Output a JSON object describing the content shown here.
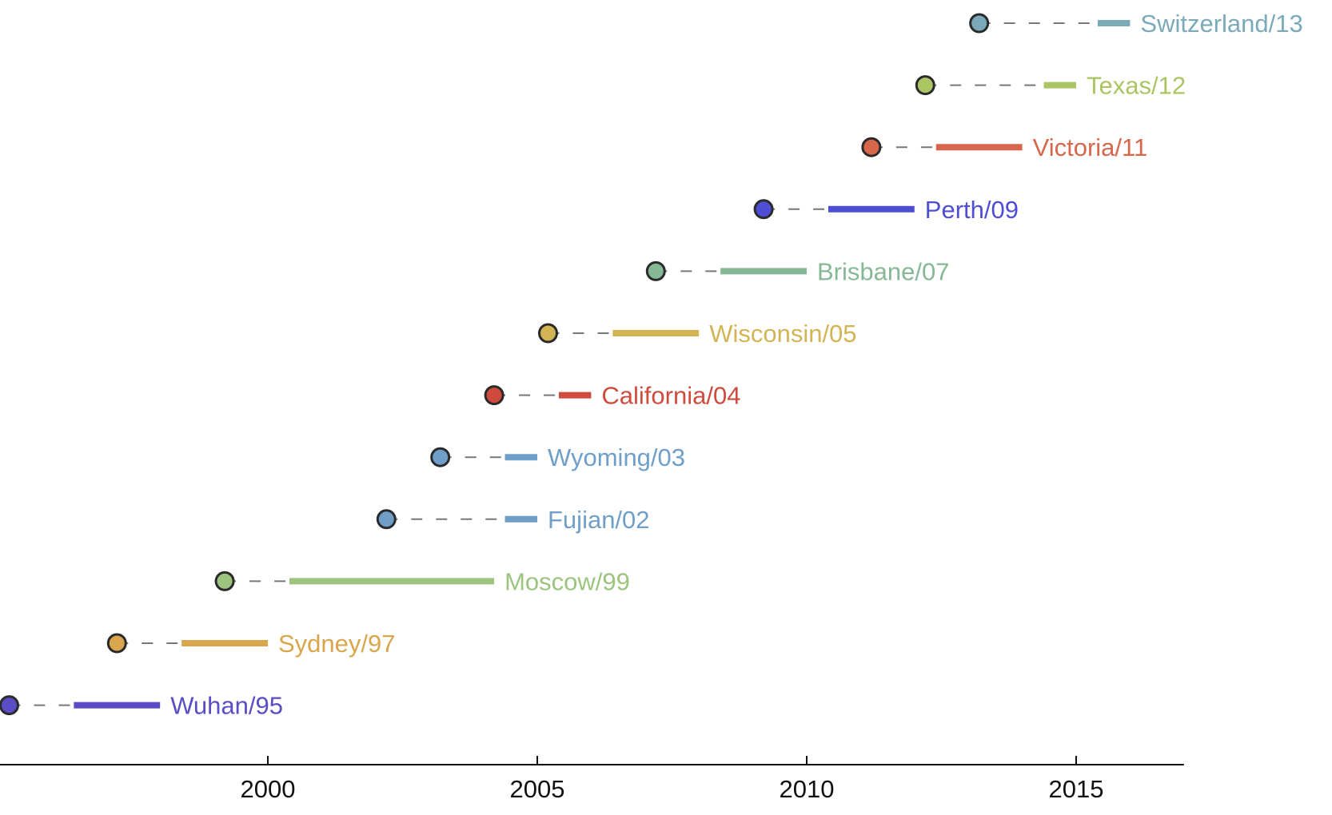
{
  "chart_data": {
    "type": "timeline",
    "title": "",
    "xlabel": "",
    "ylabel": "",
    "xlim": [
      1995,
      2017
    ],
    "xticks": [
      2000,
      2005,
      2010,
      2015
    ],
    "grid": false,
    "series": [
      {
        "label": "Wuhan/95",
        "emergence": 1995.2,
        "dash_end": 1996.4,
        "circulation": [
          1996.4,
          1998.0
        ],
        "color": "#5a4cc4"
      },
      {
        "label": "Sydney/97",
        "emergence": 1997.2,
        "dash_end": 1998.4,
        "circulation": [
          1998.4,
          2000.0
        ],
        "color": "#d9a64e"
      },
      {
        "label": "Moscow/99",
        "emergence": 1999.2,
        "dash_end": 2000.4,
        "circulation": [
          2000.4,
          2004.2
        ],
        "color": "#9cc47f"
      },
      {
        "label": "Fujian/02",
        "emergence": 2002.2,
        "dash_end": 2004.4,
        "circulation": [
          2004.4,
          2005.0
        ],
        "color": "#6f9fc8"
      },
      {
        "label": "Wyoming/03",
        "emergence": 2003.2,
        "dash_end": 2004.4,
        "circulation": [
          2004.4,
          2005.0
        ],
        "color": "#6f9fc8"
      },
      {
        "label": "California/04",
        "emergence": 2004.2,
        "dash_end": 2005.4,
        "circulation": [
          2005.4,
          2006.0
        ],
        "color": "#cf4b3d"
      },
      {
        "label": "Wisconsin/05",
        "emergence": 2005.2,
        "dash_end": 2006.4,
        "circulation": [
          2006.4,
          2008.0
        ],
        "color": "#d3b455"
      },
      {
        "label": "Brisbane/07",
        "emergence": 2007.2,
        "dash_end": 2008.4,
        "circulation": [
          2008.4,
          2010.0
        ],
        "color": "#86b895"
      },
      {
        "label": "Perth/09",
        "emergence": 2009.2,
        "dash_end": 2010.4,
        "circulation": [
          2010.4,
          2012.0
        ],
        "color": "#4e4ed4"
      },
      {
        "label": "Victoria/11",
        "emergence": 2011.2,
        "dash_end": 2012.4,
        "circulation": [
          2012.4,
          2014.0
        ],
        "color": "#d7674a"
      },
      {
        "label": "Texas/12",
        "emergence": 2012.2,
        "dash_end": 2014.4,
        "circulation": [
          2014.4,
          2015.0
        ],
        "color": "#aac562"
      },
      {
        "label": "Switzerland/13",
        "emergence": 2013.2,
        "dash_end": 2015.4,
        "circulation": [
          2015.4,
          2016.0
        ],
        "color": "#7aaab9"
      }
    ]
  }
}
